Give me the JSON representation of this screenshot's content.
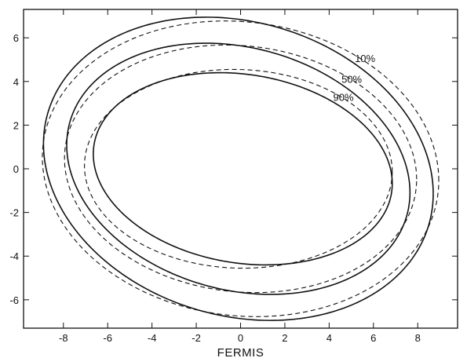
{
  "chart_data": {
    "type": "line",
    "xlabel": "FERMIS",
    "ylabel": "",
    "xlim": [
      -9.8,
      9.8
    ],
    "ylim": [
      -7.3,
      7.3
    ],
    "x_ticks": [
      -8,
      -6,
      -4,
      -2,
      0,
      2,
      4,
      6,
      8
    ],
    "y_ticks": [
      -6,
      -4,
      -2,
      0,
      2,
      4,
      6
    ],
    "x_tick_labels": [
      "-8",
      "-6",
      "-4",
      "-2",
      "0",
      "2",
      "4",
      "6",
      "8"
    ],
    "y_tick_labels": [
      "-6",
      "-4",
      "-2",
      "0",
      "2",
      "4",
      "6"
    ],
    "grid": false,
    "series": [
      {
        "name": "10%",
        "style": "solid",
        "x0": -0.1,
        "ax": 8.8,
        "ay": 6.85,
        "tilt": 0.13
      },
      {
        "name": "",
        "style": "dashed",
        "x0": 0.0,
        "ax": 8.95,
        "ay": 6.75,
        "tilt": 0.06
      },
      {
        "name": "50%",
        "style": "solid",
        "x0": -0.1,
        "ax": 7.75,
        "ay": 5.65,
        "tilt": 0.14
      },
      {
        "name": "",
        "style": "dashed",
        "x0": 0.0,
        "ax": 7.95,
        "ay": 5.65,
        "tilt": 0.06
      },
      {
        "name": "90%",
        "style": "solid",
        "x0": 0.1,
        "ax": 6.75,
        "ay": 4.35,
        "tilt": 0.1
      },
      {
        "name": "",
        "style": "dashed",
        "x0": -0.1,
        "ax": 6.95,
        "ay": 4.55,
        "tilt": 0.02
      }
    ]
  }
}
